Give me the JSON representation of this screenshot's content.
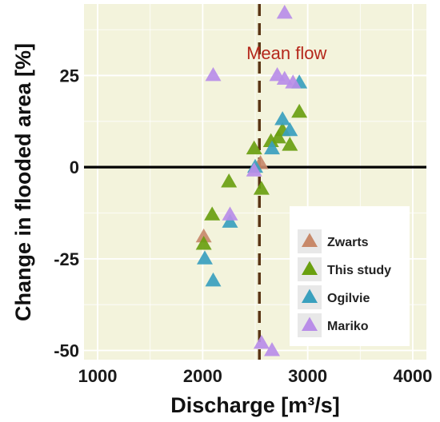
{
  "chart_data": {
    "type": "scatter",
    "title": "",
    "xlabel": "Discharge [m³/s]",
    "ylabel": "Change in flooded area [%]",
    "xlim": [
      870,
      4130
    ],
    "ylim": [
      -52.5,
      44.5
    ],
    "x_ticks": [
      1000,
      2000,
      3000,
      4000
    ],
    "x_tick_labels": [
      "1000",
      "2000",
      "3000",
      "4000"
    ],
    "y_ticks": [
      -50,
      -25,
      0,
      25
    ],
    "y_tick_labels": [
      "-50",
      "-25",
      "0",
      "25"
    ],
    "grid": true,
    "background": "#f3f3dc",
    "reference_lines": {
      "horizontal_y": 0,
      "mean_flow_x": 2540,
      "mean_flow_label": "Mean flow"
    },
    "legend_position": "bottom-right",
    "marker": "triangle",
    "series": [
      {
        "name": "Zwarts",
        "color": "#c8896a",
        "points": [
          [
            2010,
            -19
          ],
          [
            2550,
            1
          ]
        ]
      },
      {
        "name": "This study",
        "color": "#6aa010",
        "points": [
          [
            2010,
            -21
          ],
          [
            2090,
            -13
          ],
          [
            2250,
            -4
          ],
          [
            2490,
            5
          ],
          [
            2560,
            -6
          ],
          [
            2650,
            7
          ],
          [
            2720,
            8
          ],
          [
            2760,
            10
          ],
          [
            2830,
            6
          ],
          [
            2920,
            15
          ]
        ]
      },
      {
        "name": "Ogilvie",
        "color": "#3aa0be",
        "points": [
          [
            2020,
            -25
          ],
          [
            2100,
            -31
          ],
          [
            2260,
            -15
          ],
          [
            2500,
            0
          ],
          [
            2660,
            5
          ],
          [
            2760,
            13
          ],
          [
            2830,
            10
          ],
          [
            2920,
            23
          ]
        ]
      },
      {
        "name": "Mariko",
        "color": "#b98de8",
        "points": [
          [
            2100,
            25
          ],
          [
            2260,
            -13
          ],
          [
            2490,
            -1
          ],
          [
            2560,
            -48
          ],
          [
            2660,
            -50
          ],
          [
            2710,
            25
          ],
          [
            2780,
            24
          ],
          [
            2860,
            23
          ],
          [
            2780,
            42
          ]
        ]
      }
    ],
    "colors": {
      "zero_line": "#000000",
      "mean_line": "#5a3515",
      "annotation": "#b5271b",
      "grid": "#ffffff"
    }
  }
}
